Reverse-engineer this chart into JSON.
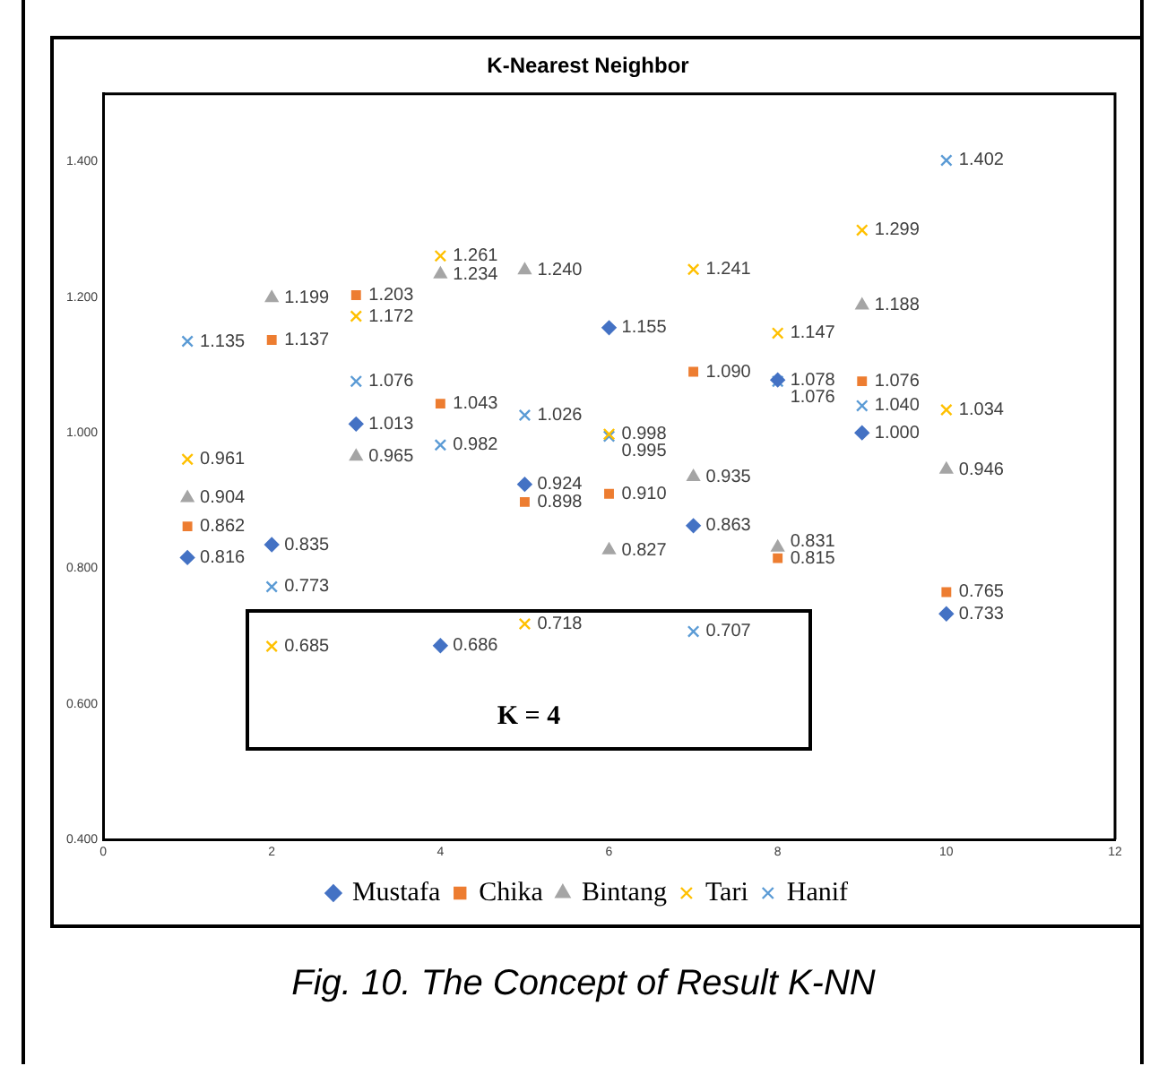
{
  "chart_data": {
    "type": "scatter",
    "title": "K-Nearest Neighbor",
    "x": [
      1,
      2,
      3,
      4,
      5,
      6,
      7,
      8,
      9,
      10
    ],
    "series": [
      {
        "name": "Mustafa",
        "color": "#4472c4",
        "marker": "diamond",
        "values": [
          0.816,
          0.835,
          1.013,
          0.686,
          0.924,
          1.155,
          0.863,
          1.078,
          1.0,
          0.733
        ],
        "value_labels": [
          "0.816",
          "0.835",
          "1.013",
          "0.686",
          "0.924",
          "1.155",
          "0.863",
          "1.078",
          "1.000",
          "0.733"
        ]
      },
      {
        "name": "Chika",
        "color": "#ed7d31",
        "marker": "square",
        "values": [
          0.862,
          1.137,
          1.203,
          1.043,
          0.898,
          0.91,
          1.09,
          0.815,
          1.076,
          0.765
        ],
        "value_labels": [
          "0.862",
          "1.137",
          "1.203",
          "1.043",
          "0.898",
          "0.910",
          "1.090",
          "0.815",
          "1.076",
          "0.765"
        ]
      },
      {
        "name": "Bintang",
        "color": "#a5a5a5",
        "marker": "triangle",
        "values": [
          0.904,
          1.199,
          0.965,
          1.234,
          1.24,
          0.827,
          0.935,
          0.831,
          1.188,
          0.946
        ],
        "value_labels": [
          "0.904",
          "1.199",
          "0.965",
          "1.234",
          "1.240",
          "0.827",
          "0.935",
          "0.831",
          "1.188",
          "0.946"
        ]
      },
      {
        "name": "Tari",
        "color": "#ffc000",
        "marker": "cross",
        "values": [
          0.961,
          0.685,
          1.172,
          1.261,
          0.718,
          0.998,
          1.241,
          1.147,
          1.299,
          1.034
        ],
        "value_labels": [
          "0.961",
          "0.685",
          "1.172",
          "1.261",
          "0.718",
          "0.998",
          "1.241",
          "1.147",
          "1.299",
          "1.034"
        ]
      },
      {
        "name": "Hanif",
        "color": "#5b9bd5",
        "marker": "cross",
        "values": [
          1.135,
          0.773,
          1.076,
          0.982,
          1.026,
          0.995,
          0.707,
          1.076,
          1.04,
          1.402
        ],
        "value_labels": [
          "1.135",
          "0.773",
          "1.076",
          "0.982",
          "1.026",
          "0.995",
          "0.707",
          "1.076",
          "1.040",
          "1.402"
        ]
      }
    ],
    "xlim": [
      0,
      12
    ],
    "xticks": [
      0,
      2,
      4,
      6,
      8,
      10,
      12
    ],
    "ylim": [
      0.4,
      1.5
    ],
    "yticks": [
      {
        "value": 0.4,
        "label": "0.400"
      },
      {
        "value": 0.6,
        "label": "0.600"
      },
      {
        "value": 0.8,
        "label": "0.800"
      },
      {
        "value": 1.0,
        "label": "1.000"
      },
      {
        "value": 1.2,
        "label": "1.200"
      },
      {
        "value": 1.4,
        "label": "1.400"
      }
    ],
    "grid": false,
    "legend": "bottom",
    "annotations": [
      "K = 4",
      "Fig. 10. The Concept of Result K-NN"
    ]
  }
}
